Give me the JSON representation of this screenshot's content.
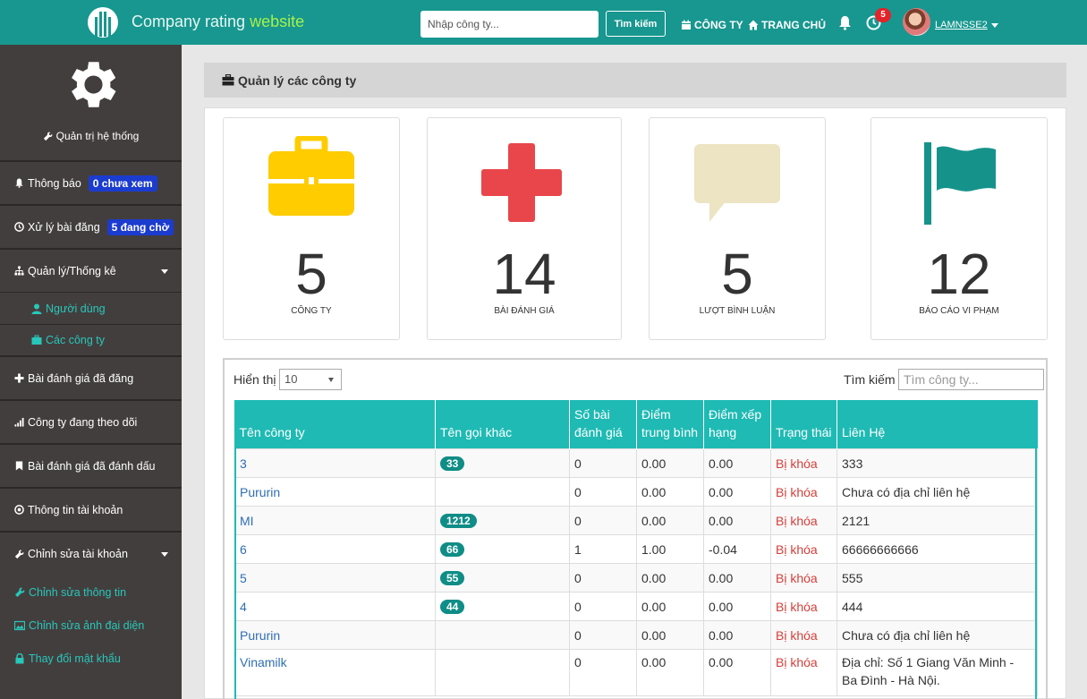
{
  "header": {
    "brand_part1": "Company rating ",
    "brand_part2": "website",
    "search_placeholder": "Nhập công ty...",
    "search_button": "Tìm kiếm",
    "nav_company": "CÔNG TY",
    "nav_home": "TRANG CHỦ",
    "notification_count": "5",
    "username": "LAMNSSE2"
  },
  "sidebar": {
    "admin_label": "Quản trị hệ thống",
    "notifications": "Thông báo",
    "notifications_badge": "0 chưa xem",
    "posts": "Xử lý bài đăng",
    "posts_badge": "5 đang chờ",
    "manage": "Quản lý/Thống kê",
    "users": "Người dùng",
    "companies": "Các công ty",
    "posted_reviews": "Bài đánh giá đã đăng",
    "following": "Công ty đang theo dõi",
    "bookmarked": "Bài đánh giá đã đánh dấu",
    "account_info": "Thông tin tài khoản",
    "edit_account": "Chỉnh sửa tài khoản",
    "edit_info": "Chỉnh sửa thông tin",
    "edit_avatar": "Chỉnh sửa ảnh đại diện",
    "change_password": "Thay đổi mật khẩu"
  },
  "page": {
    "title": "Quản lý các công ty"
  },
  "stats": [
    {
      "value": "5",
      "label": "CÔNG TY",
      "color": "#ffcc00"
    },
    {
      "value": "14",
      "label": "BÀI ĐÁNH GIÁ",
      "color": "#e8464b"
    },
    {
      "value": "5",
      "label": "LƯỢT BÌNH LUẬN",
      "color": "#ece4c2"
    },
    {
      "value": "12",
      "label": "BÁO CÁO VI PHẠM",
      "color": "#15938b"
    }
  ],
  "table": {
    "show_label": "Hiển thị",
    "page_size": "10",
    "filter_label": "Tìm kiếm",
    "filter_placeholder": "Tìm công ty...",
    "headers": [
      "Tên công ty",
      "Tên gọi khác",
      "Số bài đánh giá",
      "Điểm trung bình",
      "Điểm xếp hạng",
      "Trạng thái",
      "Liên Hệ"
    ],
    "rows": [
      {
        "name": "3",
        "alias": "33",
        "reviews": "0",
        "avg": "0.00",
        "rank": "0.00",
        "status": "Bị khóa",
        "contact": "333"
      },
      {
        "name": "Pururin",
        "alias": "",
        "reviews": "0",
        "avg": "0.00",
        "rank": "0.00",
        "status": "Bị khóa",
        "contact": "Chưa có địa chỉ liên hệ"
      },
      {
        "name": "MI",
        "alias": "1212",
        "reviews": "0",
        "avg": "0.00",
        "rank": "0.00",
        "status": "Bị khóa",
        "contact": "2121"
      },
      {
        "name": "6",
        "alias": "66",
        "reviews": "1",
        "avg": "1.00",
        "rank": "-0.04",
        "status": "Bị khóa",
        "contact": "66666666666"
      },
      {
        "name": "5",
        "alias": "55",
        "reviews": "0",
        "avg": "0.00",
        "rank": "0.00",
        "status": "Bị khóa",
        "contact": "555"
      },
      {
        "name": "4",
        "alias": "44",
        "reviews": "0",
        "avg": "0.00",
        "rank": "0.00",
        "status": "Bị khóa",
        "contact": "444"
      },
      {
        "name": "Pururin",
        "alias": "",
        "reviews": "0",
        "avg": "0.00",
        "rank": "0.00",
        "status": "Bị khóa",
        "contact": "Chưa có địa chỉ liên hệ"
      },
      {
        "name": "Vinamilk",
        "alias": "",
        "reviews": "0",
        "avg": "0.00",
        "rank": "0.00",
        "status": "Bị khóa",
        "contact": "Địa chỉ: Số 1 Giang Văn Minh - Ba Đình - Hà Nội."
      }
    ]
  }
}
